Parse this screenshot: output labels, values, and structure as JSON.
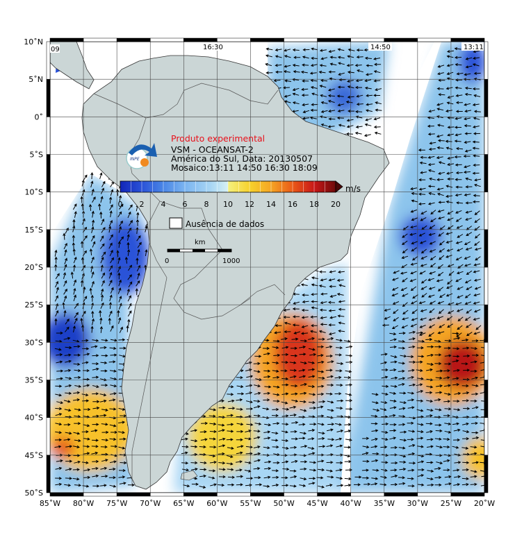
{
  "header": {
    "experimental_label": "Produto experimental",
    "product_line": "VSM - OCEANSAT-2",
    "region_line": "América do Sul, Data: 20130507",
    "mosaic_line": "Mosaico:13:11 14:50 16:30 18:09"
  },
  "logo_text": "INPE",
  "pass_labels": [
    "09",
    "16:30",
    "14:50",
    "13:11"
  ],
  "axes": {
    "lat_ticks": [
      "10˚N",
      "5˚N",
      "0˚",
      "5˚S",
      "10˚S",
      "15˚S",
      "20˚S",
      "25˚S",
      "30˚S",
      "35˚S",
      "40˚S",
      "45˚S",
      "50˚S"
    ],
    "lon_ticks": [
      "85˚W",
      "80˚W",
      "75˚W",
      "70˚W",
      "65˚W",
      "60˚W",
      "55˚W",
      "50˚W",
      "45˚W",
      "40˚W",
      "35˚W",
      "30˚W",
      "25˚W",
      "20˚W"
    ],
    "lat_range": [
      -50,
      10
    ],
    "lon_range": [
      -85,
      -20
    ]
  },
  "colorbar": {
    "unit": "m/s",
    "ticks": [
      "0",
      "2",
      "4",
      "6",
      "8",
      "10",
      "12",
      "14",
      "16",
      "18",
      "20"
    ],
    "range": [
      0,
      20
    ],
    "colors": [
      "#1226b8",
      "#2a52d8",
      "#4a86e6",
      "#7bb4f0",
      "#a8d6f4",
      "#d6f0f4",
      "#f4f080",
      "#f7d22c",
      "#f5a524",
      "#ea5a18",
      "#c81818",
      "#6e0a0a"
    ]
  },
  "legend": {
    "no_data_label": "Ausência de dados"
  },
  "scale_bar": {
    "unit": "km",
    "start": "0",
    "end": "1000"
  },
  "colors": {
    "land": "#cbd6d6",
    "no_data": "#ffffff",
    "grid": "#555555",
    "experimental": "#e8101a"
  }
}
